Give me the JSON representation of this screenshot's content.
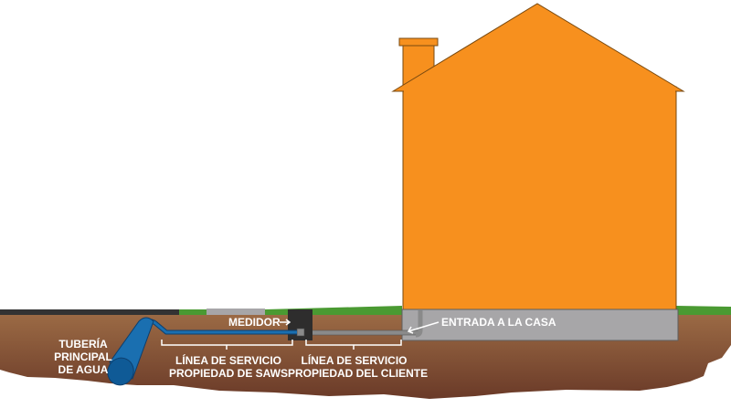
{
  "labels": {
    "main_pipe": [
      "TUBERÍA",
      "PRINCIPAL",
      "DE AGUA"
    ],
    "meter": "MEDIDOR",
    "saws_line": [
      "LÍNEA DE SERVICIO",
      "PROPIEDAD DE SAWS"
    ],
    "customer_line": [
      "LÍNEA DE SERVICIO",
      "PROPIEDAD DEL CLIENTE"
    ],
    "house_entry": "ENTRADA A LA CASA"
  },
  "colors": {
    "house": "#f7901e",
    "soil_top": "#9c6b45",
    "soil_bottom": "#6a3a28",
    "grass": "#4a9a32",
    "foundation": "#a7a6a8",
    "saws_pipe": "#1a6fb0",
    "customer_pipe": "#8a8a8a",
    "meter_box": "#2e2d2d",
    "road": "#333333"
  }
}
